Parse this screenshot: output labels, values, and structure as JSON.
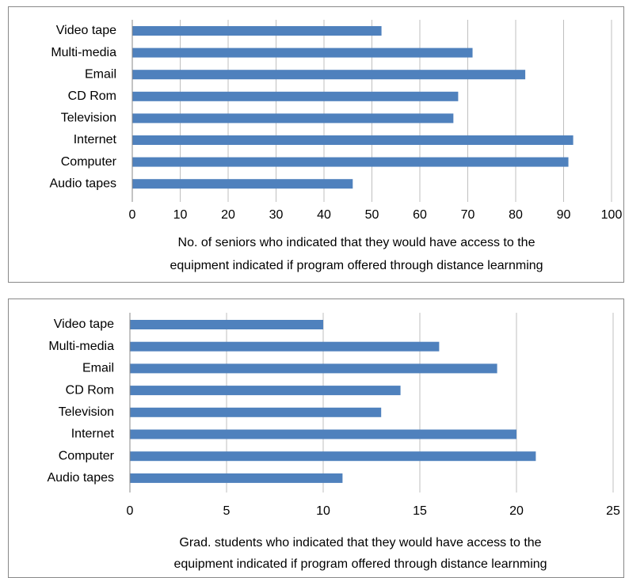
{
  "chart_data": [
    {
      "type": "bar",
      "orientation": "horizontal",
      "categories": [
        "Video tape",
        "Multi-media",
        "Email",
        "CD Rom",
        "Television",
        "Internet",
        "Computer",
        "Audio tapes"
      ],
      "values": [
        52,
        71,
        82,
        68,
        67,
        92,
        91,
        46
      ],
      "color": "#4f81bd",
      "xlim": [
        0,
        100
      ],
      "xticks": [
        0,
        10,
        20,
        30,
        40,
        50,
        60,
        70,
        80,
        90,
        100
      ],
      "grid": true,
      "xlabel": [
        "No. of seniors who indicated that they would have access to the",
        "equipment indicated if program offered through distance learnming"
      ]
    },
    {
      "type": "bar",
      "orientation": "horizontal",
      "categories": [
        "Video tape",
        "Multi-media",
        "Email",
        "CD Rom",
        "Television",
        "Internet",
        "Computer",
        "Audio tapes"
      ],
      "values": [
        10,
        16,
        19,
        14,
        13,
        20,
        21,
        11
      ],
      "color": "#4f81bd",
      "xlim": [
        0,
        25
      ],
      "xticks": [
        0,
        5,
        10,
        15,
        20,
        25
      ],
      "grid": true,
      "xlabel": [
        "Grad. students who indicated that they would have access to the",
        "equipment indicated if program offered through distance learnming"
      ]
    }
  ]
}
